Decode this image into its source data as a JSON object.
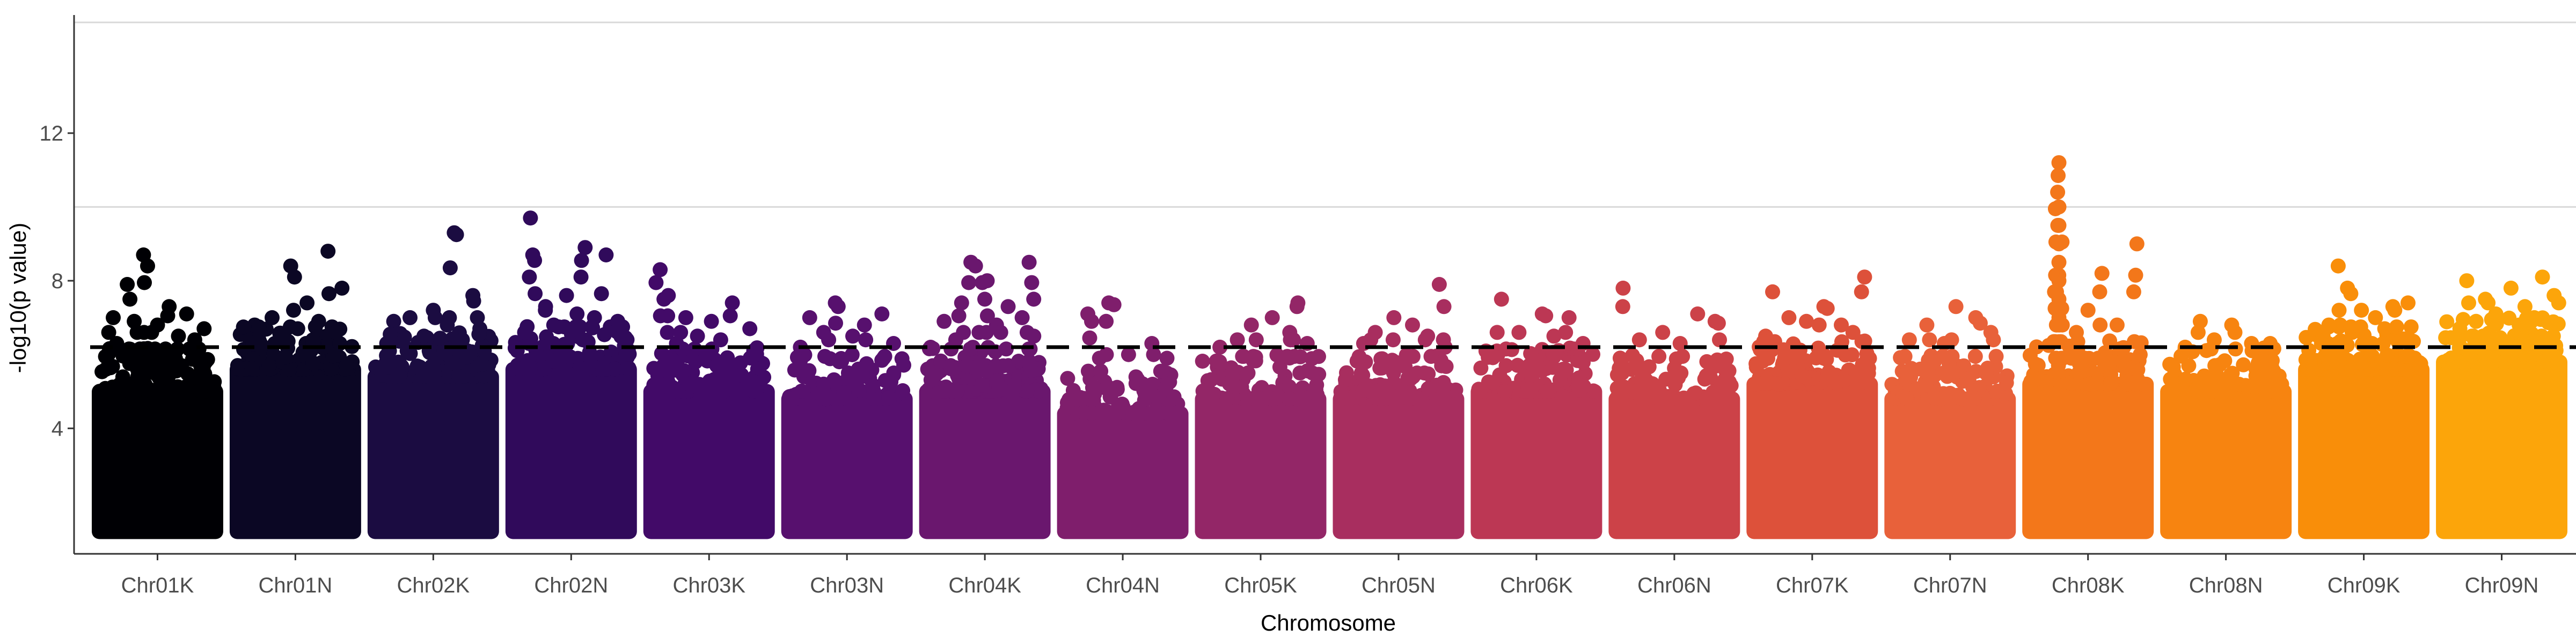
{
  "chart_data": {
    "type": "scatter",
    "subtype": "manhattan",
    "title": "",
    "xlabel": "Chromosome",
    "ylabel": "-log10(p value)",
    "categories": [
      "Chr01K",
      "Chr01N",
      "Chr02K",
      "Chr02N",
      "Chr03K",
      "Chr03N",
      "Chr04K",
      "Chr04N",
      "Chr05K",
      "Chr05N",
      "Chr06K",
      "Chr06N",
      "Chr07K",
      "Chr07N",
      "Chr08K",
      "Chr08N",
      "Chr09K",
      "Chr09N"
    ],
    "yticks": [
      4,
      8,
      12
    ],
    "ylim": [
      0.6,
      15.2
    ],
    "threshold": 6.2,
    "grid_lines": [
      10,
      15
    ],
    "legend": "none",
    "colors": [
      "#000004",
      "#0b0724",
      "#1b0c41",
      "#300a5b",
      "#420a68",
      "#57106e",
      "#6a176e",
      "#7f1e6c",
      "#932667",
      "#a82e5f",
      "#bc3754",
      "#cc4248",
      "#dd513a",
      "#e8613a",
      "#f3771a",
      "#f78410",
      "#f98e09",
      "#fca50a"
    ],
    "series": [
      {
        "name": "Chr01K",
        "base_top": 5.2,
        "peaks": [
          [
            0.38,
            8.7
          ],
          [
            0.24,
            7.9
          ],
          [
            0.6,
            7.3
          ],
          [
            0.75,
            7.1
          ],
          [
            0.12,
            7.0
          ],
          [
            0.3,
            6.9
          ],
          [
            0.5,
            6.8
          ],
          [
            0.9,
            6.7
          ],
          [
            0.45,
            6.6
          ],
          [
            0.68,
            6.5
          ],
          [
            0.82,
            6.4
          ],
          [
            0.15,
            6.3
          ]
        ]
      },
      {
        "name": "Chr01N",
        "base_top": 5.8,
        "peaks": [
          [
            0.78,
            8.8
          ],
          [
            0.46,
            8.4
          ],
          [
            0.9,
            7.8
          ],
          [
            0.6,
            7.4
          ],
          [
            0.3,
            7.0
          ],
          [
            0.7,
            6.9
          ],
          [
            0.15,
            6.8
          ],
          [
            0.52,
            6.7
          ],
          [
            0.85,
            6.6
          ],
          [
            0.4,
            6.5
          ],
          [
            0.65,
            6.4
          ],
          [
            0.2,
            6.3
          ]
        ]
      },
      {
        "name": "Chr02K",
        "base_top": 5.6,
        "peaks": [
          [
            0.68,
            9.3
          ],
          [
            0.84,
            7.6
          ],
          [
            0.5,
            7.2
          ],
          [
            0.3,
            7.0
          ],
          [
            0.62,
            6.8
          ],
          [
            0.16,
            6.9
          ],
          [
            0.9,
            6.7
          ],
          [
            0.42,
            6.5
          ],
          [
            0.75,
            6.4
          ],
          [
            0.1,
            6.3
          ]
        ]
      },
      {
        "name": "Chr02N",
        "base_top": 5.8,
        "peaks": [
          [
            0.15,
            9.7
          ],
          [
            0.17,
            8.7
          ],
          [
            0.62,
            8.9
          ],
          [
            0.8,
            8.7
          ],
          [
            0.46,
            7.6
          ],
          [
            0.28,
            7.3
          ],
          [
            0.55,
            7.1
          ],
          [
            0.7,
            7.0
          ],
          [
            0.9,
            6.9
          ],
          [
            0.35,
            6.8
          ],
          [
            0.1,
            6.6
          ],
          [
            0.6,
            6.4
          ]
        ]
      },
      {
        "name": "Chr03K",
        "base_top": 5.2,
        "peaks": [
          [
            0.08,
            8.3
          ],
          [
            0.15,
            7.6
          ],
          [
            0.3,
            7.0
          ],
          [
            0.7,
            7.4
          ],
          [
            0.52,
            6.9
          ],
          [
            0.85,
            6.7
          ],
          [
            0.4,
            6.5
          ],
          [
            0.6,
            6.4
          ],
          [
            0.22,
            6.3
          ]
        ]
      },
      {
        "name": "Chr03N",
        "base_top": 5.0,
        "peaks": [
          [
            0.4,
            7.4
          ],
          [
            0.18,
            7.0
          ],
          [
            0.65,
            6.8
          ],
          [
            0.8,
            7.1
          ],
          [
            0.3,
            6.6
          ],
          [
            0.55,
            6.5
          ],
          [
            0.9,
            6.3
          ],
          [
            0.1,
            6.2
          ]
        ]
      },
      {
        "name": "Chr04K",
        "base_top": 5.2,
        "peaks": [
          [
            0.38,
            8.5
          ],
          [
            0.88,
            8.5
          ],
          [
            0.52,
            8.0
          ],
          [
            0.3,
            7.4
          ],
          [
            0.7,
            7.3
          ],
          [
            0.82,
            7.0
          ],
          [
            0.15,
            6.9
          ],
          [
            0.6,
            6.8
          ],
          [
            0.45,
            6.6
          ],
          [
            0.92,
            6.5
          ],
          [
            0.25,
            6.4
          ]
        ]
      },
      {
        "name": "Chr04N",
        "base_top": 4.6,
        "peaks": [
          [
            0.38,
            7.4
          ],
          [
            0.2,
            7.1
          ],
          [
            0.75,
            6.3
          ],
          [
            0.55,
            6.0
          ],
          [
            0.3,
            5.9
          ],
          [
            0.88,
            5.9
          ]
        ]
      },
      {
        "name": "Chr05K",
        "base_top": 5.0,
        "peaks": [
          [
            0.82,
            7.4
          ],
          [
            0.6,
            7.0
          ],
          [
            0.42,
            6.8
          ],
          [
            0.75,
            6.6
          ],
          [
            0.3,
            6.4
          ],
          [
            0.9,
            6.3
          ],
          [
            0.15,
            6.2
          ]
        ]
      },
      {
        "name": "Chr05N",
        "base_top": 5.0,
        "peaks": [
          [
            0.85,
            7.9
          ],
          [
            0.46,
            7.0
          ],
          [
            0.62,
            6.8
          ],
          [
            0.3,
            6.6
          ],
          [
            0.75,
            6.5
          ],
          [
            0.2,
            6.3
          ],
          [
            0.9,
            6.2
          ]
        ]
      },
      {
        "name": "Chr06K",
        "base_top": 5.2,
        "peaks": [
          [
            0.2,
            7.5
          ],
          [
            0.55,
            7.1
          ],
          [
            0.78,
            7.0
          ],
          [
            0.35,
            6.6
          ],
          [
            0.65,
            6.5
          ],
          [
            0.9,
            6.3
          ]
        ]
      },
      {
        "name": "Chr06N",
        "base_top": 5.0,
        "peaks": [
          [
            0.06,
            7.8
          ],
          [
            0.7,
            7.1
          ],
          [
            0.85,
            6.9
          ],
          [
            0.4,
            6.6
          ],
          [
            0.2,
            6.4
          ],
          [
            0.55,
            6.3
          ]
        ]
      },
      {
        "name": "Chr07K",
        "base_top": 5.4,
        "peaks": [
          [
            0.16,
            7.7
          ],
          [
            0.95,
            8.1
          ],
          [
            0.6,
            7.3
          ],
          [
            0.3,
            7.0
          ],
          [
            0.45,
            6.9
          ],
          [
            0.75,
            6.8
          ],
          [
            0.85,
            6.6
          ],
          [
            0.1,
            6.5
          ]
        ]
      },
      {
        "name": "Chr07N",
        "base_top": 5.0,
        "peaks": [
          [
            0.55,
            7.3
          ],
          [
            0.72,
            7.0
          ],
          [
            0.3,
            6.8
          ],
          [
            0.85,
            6.6
          ],
          [
            0.15,
            6.4
          ],
          [
            0.45,
            6.3
          ]
        ]
      },
      {
        "name": "Chr08K",
        "base_top": 5.4,
        "peaks": [
          [
            0.25,
            11.2
          ],
          [
            0.25,
            10.0
          ],
          [
            0.25,
            9.5
          ],
          [
            0.25,
            9.0
          ],
          [
            0.25,
            8.5
          ],
          [
            0.25,
            8.0
          ],
          [
            0.25,
            7.5
          ],
          [
            0.25,
            7.0
          ],
          [
            0.62,
            8.2
          ],
          [
            0.92,
            9.0
          ],
          [
            0.5,
            7.2
          ],
          [
            0.75,
            6.8
          ],
          [
            0.4,
            6.6
          ]
        ]
      },
      {
        "name": "Chr08N",
        "base_top": 5.2,
        "peaks": [
          [
            0.28,
            6.9
          ],
          [
            0.55,
            6.8
          ],
          [
            0.72,
            6.3
          ],
          [
            0.4,
            6.4
          ],
          [
            0.88,
            6.3
          ],
          [
            0.15,
            6.2
          ]
        ]
      },
      {
        "name": "Chr09K",
        "base_top": 5.8,
        "peaks": [
          [
            0.28,
            8.4
          ],
          [
            0.36,
            7.8
          ],
          [
            0.48,
            7.2
          ],
          [
            0.6,
            7.0
          ],
          [
            0.75,
            7.3
          ],
          [
            0.88,
            7.4
          ],
          [
            0.2,
            6.8
          ],
          [
            0.68,
            6.7
          ],
          [
            0.4,
            6.6
          ],
          [
            0.15,
            6.5
          ]
        ]
      },
      {
        "name": "Chr09N",
        "base_top": 6.0,
        "peaks": [
          [
            0.2,
            8.0
          ],
          [
            0.58,
            7.8
          ],
          [
            0.85,
            8.1
          ],
          [
            0.95,
            7.6
          ],
          [
            0.36,
            7.5
          ],
          [
            0.7,
            7.3
          ],
          [
            0.45,
            7.1
          ],
          [
            0.78,
            7.0
          ],
          [
            0.28,
            6.9
          ],
          [
            0.65,
            6.8
          ]
        ]
      }
    ]
  }
}
